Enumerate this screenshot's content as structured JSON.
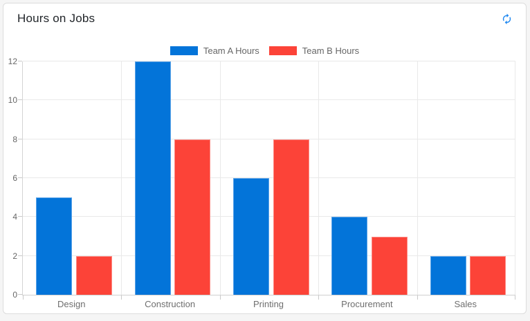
{
  "card": {
    "title": "Hours on Jobs"
  },
  "icons": {
    "refresh": "refresh-icon",
    "refresh_color": "#1e87f0"
  },
  "colors": {
    "card_border": "#dcdcdc",
    "grid": "#e9e9e9",
    "axis_line": "#cfcfcf",
    "tick_text": "#666666",
    "category_text": "#6e6e6e",
    "team_a_blue": "#0374d9",
    "team_b_red": "#fc4338"
  },
  "chart_data": {
    "type": "bar",
    "title": "Hours on Jobs",
    "categories": [
      "Design",
      "Construction",
      "Printing",
      "Procurement",
      "Sales"
    ],
    "series": [
      {
        "name": "Team A Hours",
        "color": "#0374d9",
        "border_color": "#5ba3e8",
        "values": [
          5,
          12,
          6,
          4,
          2
        ]
      },
      {
        "name": "Team B Hours",
        "color": "#fc4338",
        "border_color": "#fd8a83",
        "values": [
          2,
          8,
          8,
          3,
          2
        ]
      }
    ],
    "xlabel": "",
    "ylabel": "",
    "ylim": [
      0,
      12
    ],
    "y_ticks": [
      0,
      2,
      4,
      6,
      8,
      10,
      12
    ],
    "grid": true,
    "legend_position": "top"
  }
}
